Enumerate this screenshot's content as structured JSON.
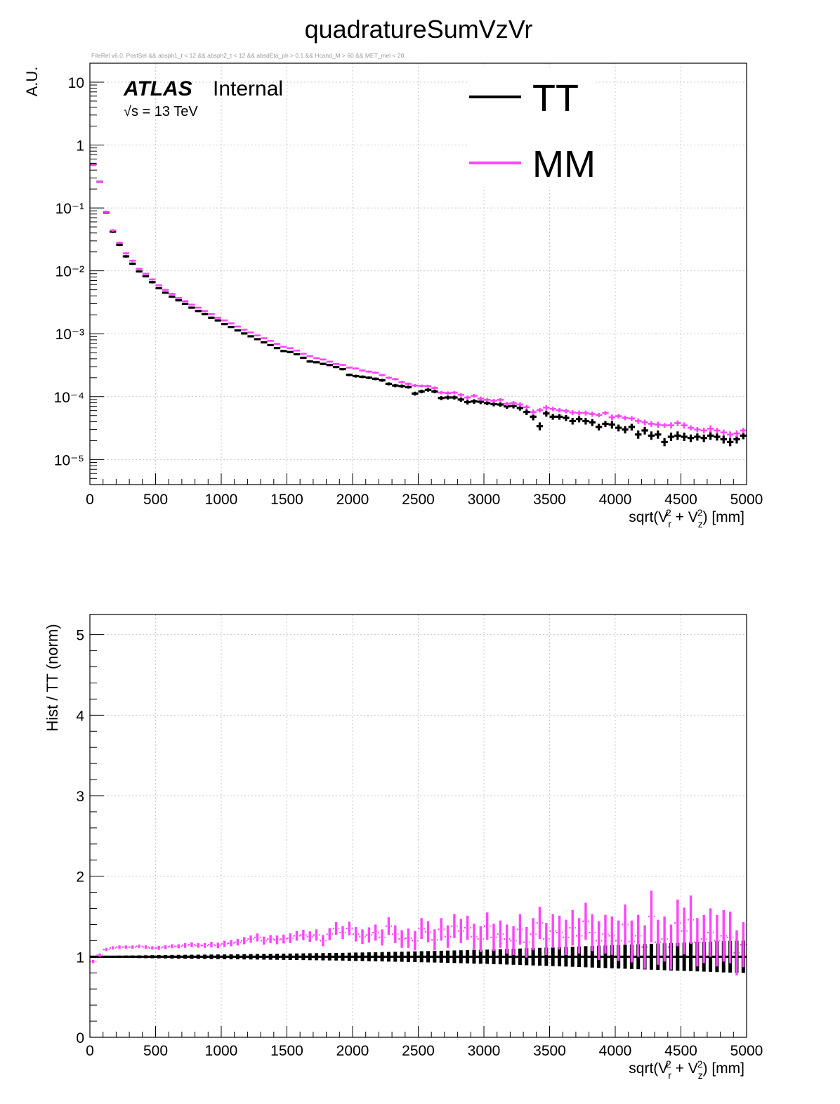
{
  "page_title": "quadratureSumVzVr",
  "cut_string": "FileRel v6.0. PostSel &&  absph1_t < 12 && absph2_t < 12 && absdEta_ph > 0.1 && Hcand_M > 60 && MET_mel < 20",
  "atlas_label": "ATLAS",
  "atlas_status": "Internal",
  "energy_label": "√s = 13 TeV",
  "colors": {
    "TT": "#000000",
    "MM": "#ff44ff",
    "grid": "#c8c8c8"
  },
  "chart_data": [
    {
      "type": "line",
      "plot_style": "histogram-points-with-errorbars",
      "scale": "log",
      "xlabel": "sqrt(V_r^2 + V_z^2) [mm]",
      "ylabel": "A.U.",
      "xlim": [
        0,
        5000
      ],
      "ylim": [
        4e-06,
        20
      ],
      "grid": true,
      "legend_position": "top-right",
      "x_ticks": [
        0,
        500,
        1000,
        1500,
        2000,
        2500,
        3000,
        3500,
        4000,
        4500,
        5000
      ],
      "y_ticks": [
        "10⁻⁵",
        "10⁻⁴",
        "10⁻³",
        "10⁻²",
        "10⁻¹",
        "1",
        "10"
      ],
      "x": [
        25,
        75,
        125,
        175,
        225,
        275,
        325,
        375,
        425,
        475,
        525,
        575,
        625,
        675,
        725,
        775,
        825,
        875,
        925,
        975,
        1025,
        1075,
        1125,
        1175,
        1225,
        1275,
        1325,
        1375,
        1425,
        1475,
        1525,
        1575,
        1625,
        1675,
        1725,
        1775,
        1825,
        1875,
        1925,
        1975,
        2025,
        2075,
        2125,
        2175,
        2225,
        2275,
        2325,
        2375,
        2425,
        2475,
        2525,
        2575,
        2625,
        2675,
        2725,
        2775,
        2825,
        2875,
        2925,
        2975,
        3025,
        3075,
        3125,
        3175,
        3225,
        3275,
        3325,
        3375,
        3425,
        3475,
        3525,
        3575,
        3625,
        3675,
        3725,
        3775,
        3825,
        3875,
        3925,
        3975,
        4025,
        4075,
        4125,
        4175,
        4225,
        4275,
        4325,
        4375,
        4425,
        4475,
        4525,
        4575,
        4625,
        4675,
        4725,
        4775,
        4825,
        4875,
        4925,
        4975
      ],
      "series": [
        {
          "name": "TT",
          "values": [
            0.5,
            0.26,
            0.085,
            0.042,
            0.026,
            0.017,
            0.013,
            0.0098,
            0.0082,
            0.0066,
            0.0053,
            0.0045,
            0.0039,
            0.0034,
            0.003,
            0.0026,
            0.0023,
            0.00205,
            0.0018,
            0.00163,
            0.00142,
            0.00128,
            0.00113,
            0.00101,
            0.00091,
            0.00082,
            0.00073,
            0.00066,
            0.000592,
            0.000531,
            0.000512,
            0.000472,
            0.000415,
            0.000362,
            0.000352,
            0.000332,
            0.000318,
            0.000296,
            0.000274,
            0.000222,
            0.000212,
            0.000207,
            0.0002,
            0.000192,
            0.000182,
            0.00016,
            0.00015,
            0.000147,
            0.000142,
            0.000112,
            0.000121,
            0.000128,
            0.000121,
            9.5e-05,
            9.7e-05,
            9.7e-05,
            9e-05,
            8.2e-05,
            8.4e-05,
            8.3e-05,
            7.9e-05,
            7.6e-05,
            7.5e-05,
            7e-05,
            7.1e-05,
            6.6e-05,
            5.7e-05,
            4.8e-05,
            3.4e-05,
            5.4e-05,
            4.8e-05,
            4.8e-05,
            4.6e-05,
            4.1e-05,
            4.4e-05,
            4.1e-05,
            3.9e-05,
            3.3e-05,
            3.7e-05,
            3.6e-05,
            3.2e-05,
            3e-05,
            3.3e-05,
            2.5e-05,
            2.9e-05,
            2.4e-05,
            2.5e-05,
            1.9e-05,
            2.3e-05,
            2.4e-05,
            2.3e-05,
            2.2e-05,
            2.3e-05,
            2.2e-05,
            2.4e-05,
            2.3e-05,
            2.1e-05,
            1.9e-05,
            2.1e-05,
            2.4e-05
          ],
          "errors": [
            0.02,
            0.01,
            0.004,
            0.002,
            0.0012,
            0.0008,
            0.0006,
            0.0004,
            0.0003,
            0.0003,
            0.0002,
            0.00018,
            0.00015,
            0.00013,
            0.00011,
            0.0001,
            9e-05,
            8e-05,
            7e-05,
            6e-05,
            5e-05,
            4.5e-05,
            4e-05,
            3.6e-05,
            3.2e-05,
            2.9e-05,
            2.6e-05,
            2.4e-05,
            2.2e-05,
            2e-05,
            1.9e-05,
            1.8e-05,
            1.6e-05,
            1.5e-05,
            1.4e-05,
            1.4e-05,
            1.3e-05,
            1.2e-05,
            1.2e-05,
            1.1e-05,
            1.1e-05,
            1e-05,
            1e-05,
            1e-05,
            1e-05,
            9e-06,
            9e-06,
            9e-06,
            8e-06,
            8e-06,
            8e-06,
            8e-06,
            8e-06,
            7e-06,
            7e-06,
            7e-06,
            7e-06,
            7e-06,
            7e-06,
            7e-06,
            6e-06,
            6e-06,
            6e-06,
            6e-06,
            6e-06,
            6e-06,
            6e-06,
            6e-06,
            5e-06,
            6e-06,
            5e-06,
            5e-06,
            5e-06,
            5e-06,
            5e-06,
            5e-06,
            5e-06,
            4e-06,
            4e-06,
            5e-06,
            4e-06,
            4e-06,
            4e-06,
            4e-06,
            4e-06,
            4e-06,
            4e-06,
            3e-06,
            4e-06,
            4e-06,
            4e-06,
            3e-06,
            3e-06,
            3e-06,
            4e-06,
            3e-06,
            3e-06,
            3e-06,
            3e-06,
            3e-06
          ]
        },
        {
          "name": "MM",
          "values": [
            0.48,
            0.26,
            0.087,
            0.044,
            0.028,
            0.019,
            0.0145,
            0.0108,
            0.009,
            0.0073,
            0.0059,
            0.005,
            0.0043,
            0.0037,
            0.0033,
            0.0029,
            0.0026,
            0.0023,
            0.00205,
            0.0018,
            0.00163,
            0.00146,
            0.0013,
            0.00116,
            0.00105,
            0.00094,
            0.00085,
            0.00077,
            0.00069,
            0.00062,
            0.00059,
            0.00054,
            0.00048,
            0.00044,
            0.00041,
            0.00039,
            0.00036,
            0.00033,
            0.00032,
            0.00029,
            0.00028,
            0.00026,
            0.00025,
            0.00024,
            0.00022,
            0.0002,
            0.00019,
            0.00017,
            0.00016,
            0.00015,
            0.000148,
            0.000147,
            0.000137,
            0.000116,
            0.000114,
            0.000116,
            0.000107,
            9.7e-05,
            0.000103,
            9.3e-05,
            8.9e-05,
            8.6e-05,
            8.9e-05,
            7.7e-05,
            7.9e-05,
            7.5e-05,
            6.8e-05,
            5.7e-05,
            6.1e-05,
            6.7e-05,
            6.4e-05,
            6.1e-05,
            5.9e-05,
            5.6e-05,
            5.5e-05,
            5.5e-05,
            5.3e-05,
            5.1e-05,
            5.5e-05,
            4.7e-05,
            4.9e-05,
            4.6e-05,
            4.5e-05,
            4.1e-05,
            3.9e-05,
            3.7e-05,
            3.6e-05,
            3.5e-05,
            3.5e-05,
            3.8e-05,
            3.5e-05,
            3.2e-05,
            3e-05,
            2.9e-05,
            3.1e-05,
            2.9e-05,
            2.7e-05,
            2.5e-05,
            2.6e-05,
            2.9e-05
          ],
          "errors": [
            0.02,
            0.01,
            0.004,
            0.002,
            0.0012,
            0.0008,
            0.0006,
            0.0004,
            0.0003,
            0.0003,
            0.0002,
            0.00018,
            0.00015,
            0.00013,
            0.00011,
            0.0001,
            9e-05,
            8e-05,
            7e-05,
            6e-05,
            5e-05,
            4.5e-05,
            4e-05,
            3.6e-05,
            3.2e-05,
            2.9e-05,
            2.6e-05,
            2.4e-05,
            2.2e-05,
            2e-05,
            1.9e-05,
            1.8e-05,
            1.6e-05,
            1.5e-05,
            1.4e-05,
            1.4e-05,
            1.3e-05,
            1.2e-05,
            1.2e-05,
            1.1e-05,
            1.1e-05,
            1e-05,
            1e-05,
            1e-05,
            1e-05,
            9e-06,
            9e-06,
            9e-06,
            8e-06,
            8e-06,
            8e-06,
            8e-06,
            8e-06,
            7e-06,
            7e-06,
            7e-06,
            7e-06,
            7e-06,
            7e-06,
            7e-06,
            6e-06,
            6e-06,
            6e-06,
            6e-06,
            6e-06,
            6e-06,
            6e-06,
            6e-06,
            5e-06,
            6e-06,
            5e-06,
            5e-06,
            5e-06,
            5e-06,
            5e-06,
            5e-06,
            5e-06,
            4e-06,
            4e-06,
            5e-06,
            4e-06,
            4e-06,
            4e-06,
            4e-06,
            4e-06,
            4e-06,
            4e-06,
            3e-06,
            4e-06,
            4e-06,
            4e-06,
            3e-06,
            3e-06,
            3e-06,
            4e-06,
            3e-06,
            3e-06,
            3e-06,
            3e-06,
            3e-06
          ]
        }
      ]
    },
    {
      "type": "line",
      "plot_style": "ratio-points-with-errorbars",
      "scale": "linear",
      "xlabel": "sqrt(V_r^2 + V_z^2) [mm]",
      "ylabel": "Hist / TT (norm)",
      "xlim": [
        0,
        5000
      ],
      "ylim": [
        0,
        5.25
      ],
      "grid": true,
      "x_ticks": [
        0,
        500,
        1000,
        1500,
        2000,
        2500,
        3000,
        3500,
        4000,
        4500,
        5000
      ],
      "y_ticks": [
        0,
        1,
        2,
        3,
        4,
        5
      ],
      "x": [
        25,
        75,
        125,
        175,
        225,
        275,
        325,
        375,
        425,
        475,
        525,
        575,
        625,
        675,
        725,
        775,
        825,
        875,
        925,
        975,
        1025,
        1075,
        1125,
        1175,
        1225,
        1275,
        1325,
        1375,
        1425,
        1475,
        1525,
        1575,
        1625,
        1675,
        1725,
        1775,
        1825,
        1875,
        1925,
        1975,
        2025,
        2075,
        2125,
        2175,
        2225,
        2275,
        2325,
        2375,
        2425,
        2475,
        2525,
        2575,
        2625,
        2675,
        2725,
        2775,
        2825,
        2875,
        2925,
        2975,
        3025,
        3075,
        3125,
        3175,
        3225,
        3275,
        3325,
        3375,
        3425,
        3475,
        3525,
        3575,
        3625,
        3675,
        3725,
        3775,
        3825,
        3875,
        3925,
        3975,
        4025,
        4075,
        4125,
        4175,
        4225,
        4275,
        4325,
        4375,
        4425,
        4475,
        4525,
        4575,
        4625,
        4675,
        4725,
        4775,
        4825,
        4875,
        4925,
        4975
      ],
      "series": [
        {
          "name": "TT",
          "values": [
            1,
            1,
            1,
            1,
            1,
            1,
            1,
            1,
            1,
            1,
            1,
            1,
            1,
            1,
            1,
            1,
            1,
            1,
            1,
            1,
            1,
            1,
            1,
            1,
            1,
            1,
            1,
            1,
            1,
            1,
            1,
            1,
            1,
            1,
            1,
            1,
            1,
            1,
            1,
            1,
            1,
            1,
            1,
            1,
            1,
            1,
            1,
            1,
            1,
            1,
            1,
            1,
            1,
            1,
            1,
            1,
            1,
            1,
            1,
            1,
            1,
            1,
            1,
            1,
            1,
            1,
            1,
            1,
            1,
            1,
            1,
            1,
            1,
            1,
            1,
            1,
            1,
            1,
            1,
            1,
            1,
            1,
            1,
            1,
            1,
            1,
            1,
            1,
            1,
            1,
            1,
            1,
            1,
            1,
            1,
            1,
            1,
            1,
            1,
            1
          ],
          "errors": [
            0.01,
            0.01,
            0.012,
            0.012,
            0.014,
            0.015,
            0.016,
            0.017,
            0.018,
            0.019,
            0.02,
            0.021,
            0.022,
            0.023,
            0.024,
            0.025,
            0.026,
            0.027,
            0.028,
            0.029,
            0.03,
            0.031,
            0.032,
            0.033,
            0.034,
            0.035,
            0.036,
            0.037,
            0.038,
            0.039,
            0.04,
            0.041,
            0.042,
            0.043,
            0.044,
            0.045,
            0.046,
            0.047,
            0.048,
            0.05,
            0.052,
            0.053,
            0.055,
            0.056,
            0.058,
            0.06,
            0.062,
            0.063,
            0.065,
            0.067,
            0.069,
            0.07,
            0.072,
            0.074,
            0.076,
            0.078,
            0.08,
            0.082,
            0.085,
            0.087,
            0.089,
            0.092,
            0.094,
            0.097,
            0.1,
            0.102,
            0.105,
            0.108,
            0.11,
            0.113,
            0.116,
            0.119,
            0.122,
            0.125,
            0.128,
            0.131,
            0.134,
            0.137,
            0.14,
            0.143,
            0.146,
            0.149,
            0.152,
            0.155,
            0.158,
            0.161,
            0.164,
            0.167,
            0.17,
            0.173,
            0.176,
            0.179,
            0.182,
            0.185,
            0.188,
            0.191,
            0.194,
            0.197,
            0.2,
            0.2
          ]
        },
        {
          "name": "MM",
          "values": [
            0.94,
            1.02,
            1.09,
            1.11,
            1.12,
            1.12,
            1.12,
            1.13,
            1.12,
            1.11,
            1.11,
            1.12,
            1.13,
            1.13,
            1.14,
            1.15,
            1.14,
            1.14,
            1.15,
            1.14,
            1.16,
            1.17,
            1.18,
            1.2,
            1.22,
            1.24,
            1.2,
            1.22,
            1.21,
            1.22,
            1.23,
            1.26,
            1.27,
            1.25,
            1.27,
            1.2,
            1.28,
            1.35,
            1.3,
            1.35,
            1.28,
            1.25,
            1.27,
            1.3,
            1.24,
            1.38,
            1.28,
            1.22,
            1.23,
            1.2,
            1.35,
            1.31,
            1.21,
            1.34,
            1.25,
            1.38,
            1.32,
            1.36,
            1.25,
            1.22,
            1.38,
            1.24,
            1.28,
            1.22,
            1.2,
            1.34,
            1.18,
            1.28,
            1.42,
            1.22,
            1.32,
            1.3,
            1.24,
            1.36,
            1.26,
            1.44,
            1.3,
            1.2,
            1.28,
            1.26,
            1.2,
            1.4,
            1.19,
            1.26,
            1.12,
            1.5,
            1.18,
            1.22,
            1.12,
            1.42,
            1.32,
            1.46,
            1.18,
            1.22,
            1.3,
            1.2,
            1.26,
            1.24,
            1.05,
            1.15
          ],
          "errors": [
            0.02,
            0.02,
            0.02,
            0.02,
            0.02,
            0.02,
            0.02,
            0.02,
            0.02,
            0.02,
            0.025,
            0.025,
            0.025,
            0.025,
            0.03,
            0.03,
            0.03,
            0.03,
            0.035,
            0.035,
            0.04,
            0.04,
            0.04,
            0.045,
            0.045,
            0.05,
            0.05,
            0.05,
            0.055,
            0.055,
            0.06,
            0.06,
            0.065,
            0.065,
            0.07,
            0.07,
            0.075,
            0.08,
            0.08,
            0.085,
            0.09,
            0.09,
            0.095,
            0.1,
            0.1,
            0.11,
            0.11,
            0.11,
            0.12,
            0.12,
            0.13,
            0.13,
            0.13,
            0.14,
            0.14,
            0.15,
            0.15,
            0.15,
            0.16,
            0.16,
            0.17,
            0.17,
            0.17,
            0.18,
            0.18,
            0.19,
            0.19,
            0.2,
            0.2,
            0.2,
            0.21,
            0.21,
            0.22,
            0.22,
            0.22,
            0.23,
            0.23,
            0.24,
            0.24,
            0.24,
            0.25,
            0.25,
            0.26,
            0.26,
            0.27,
            0.32,
            0.28,
            0.28,
            0.28,
            0.29,
            0.29,
            0.3,
            0.3,
            0.3,
            0.3,
            0.32,
            0.32,
            0.32,
            0.28,
            0.28
          ]
        }
      ]
    }
  ]
}
